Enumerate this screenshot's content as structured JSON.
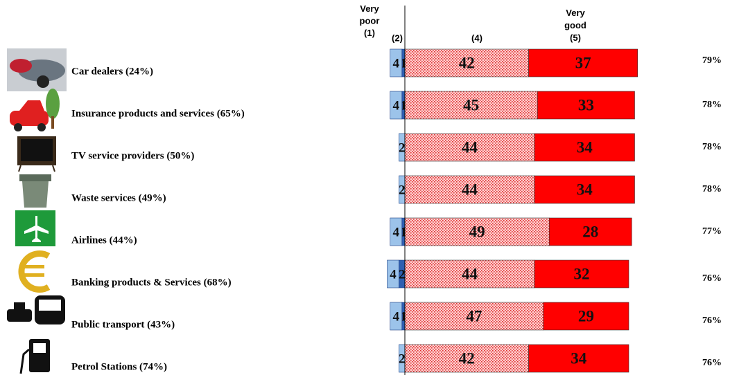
{
  "chart_data": {
    "type": "diverging-bar",
    "categories": [
      "Car dealers (24%)",
      "Insurance products and services (65%)",
      "TV service providers (50%)",
      "Waste services (49%)",
      "Airlines (44%)",
      "Banking products & Services (68%)",
      "Public transport (43%)",
      "Petrol Stations (74%)"
    ],
    "series": [
      {
        "name": "Very poor (1)",
        "color": "#2e5fb0",
        "side": "left",
        "values": [
          1,
          1,
          null,
          null,
          1,
          2,
          1,
          null
        ]
      },
      {
        "name": "(2)",
        "color": "#9cc3ea",
        "side": "left",
        "values": [
          4,
          4,
          2,
          2,
          4,
          4,
          4,
          2
        ]
      },
      {
        "name": "(4)",
        "color": "#ffd0d0",
        "side": "right",
        "values": [
          42,
          45,
          44,
          44,
          49,
          44,
          47,
          42
        ]
      },
      {
        "name": "Very good (5)",
        "color": "#ff0000",
        "side": "right",
        "values": [
          37,
          33,
          34,
          34,
          28,
          32,
          29,
          34
        ]
      }
    ],
    "totals": {
      "values": [
        79,
        78,
        78,
        78,
        77,
        76,
        76,
        76
      ],
      "value_labels": [
        "79%",
        "78%",
        "78%",
        "78%",
        "77%",
        "76%",
        "76%",
        "76%"
      ]
    }
  }
}
